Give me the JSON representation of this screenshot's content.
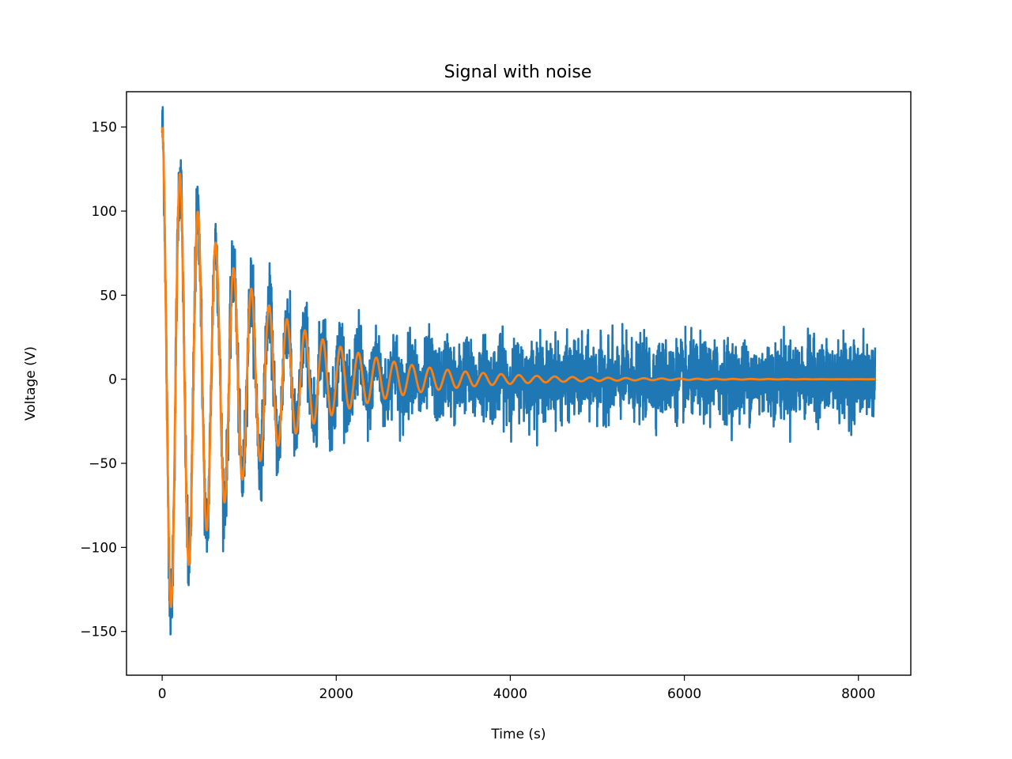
{
  "chart_data": {
    "type": "line",
    "title": "Signal with noise",
    "xlabel": "Time (s)",
    "ylabel": "Voltage (V)",
    "xlim": [
      -410,
      8602
    ],
    "ylim": [
      -176,
      171
    ],
    "x_ticks": [
      0,
      2000,
      4000,
      6000,
      8000
    ],
    "x_tick_labels": [
      "0",
      "2000",
      "4000",
      "6000",
      "8000"
    ],
    "y_ticks": [
      -150,
      -100,
      -50,
      0,
      50,
      100,
      150
    ],
    "y_tick_labels": [
      "−150",
      "−100",
      "−50",
      "0",
      "50",
      "100",
      "150"
    ],
    "grid": false,
    "legend": "none",
    "series": [
      {
        "color": "#1f77b4",
        "description_values": "noisy damped oscillation, x from 0 to 8192 s; noise amplitude about ±25 V, peaks up to about ±45 V",
        "x": [
          0,
          30,
          60,
          100,
          150,
          200,
          250,
          300,
          350,
          400,
          450,
          500,
          550,
          600,
          650,
          700,
          750,
          800,
          850,
          900,
          950,
          1000,
          1050,
          1100,
          1150,
          1200,
          1300,
          1400,
          1500,
          1600,
          1700,
          1800,
          1900,
          2000,
          2200,
          2400,
          2600,
          2800,
          3000,
          3300,
          3600,
          4000,
          4500,
          5000,
          5500,
          6000,
          6500,
          7000,
          7500,
          8000,
          8192
        ],
        "y": [
          148,
          155,
          40,
          -160,
          -60,
          145,
          90,
          -136,
          -40,
          114,
          60,
          -105,
          10,
          108,
          30,
          -85,
          -10,
          83,
          5,
          -65,
          -10,
          75,
          10,
          -55,
          0,
          50,
          -40,
          38,
          -35,
          30,
          -30,
          28,
          -30,
          25,
          -28,
          26,
          -30,
          30,
          -28,
          25,
          -57,
          30,
          -25,
          28,
          -30,
          38,
          -30,
          35,
          -28,
          30,
          -22
        ]
      },
      {
        "color": "#ff7f0e",
        "description_values": "damped sinusoid y = 150·exp(-x/1000)·cos(2π·x/205)",
        "amplitude": 150,
        "decay_constant": 1000,
        "period": 205,
        "x_range": [
          0,
          8192
        ]
      }
    ]
  }
}
